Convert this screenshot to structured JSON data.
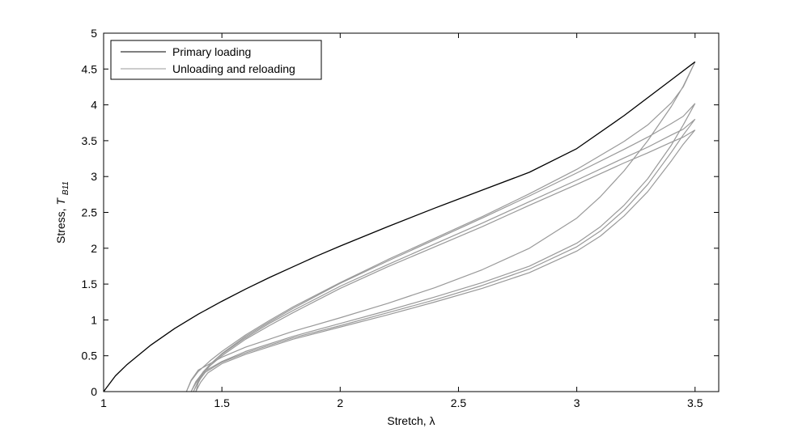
{
  "chart_data": {
    "type": "line",
    "title": "",
    "xlabel": "Stretch, λ",
    "ylabel_prefix": "Stress, ",
    "ylabel_symbol": "T",
    "ylabel_subscript": "B11",
    "xlim": [
      1,
      3.6
    ],
    "ylim": [
      0,
      5
    ],
    "xticks": [
      1,
      1.5,
      2,
      2.5,
      3,
      3.5
    ],
    "xtick_labels": [
      "1",
      "1.5",
      "2",
      "2.5",
      "3",
      "3.5"
    ],
    "yticks": [
      0,
      0.5,
      1,
      1.5,
      2,
      2.5,
      3,
      3.5,
      4,
      4.5,
      5
    ],
    "ytick_labels": [
      "0",
      "0.5",
      "1",
      "1.5",
      "2",
      "2.5",
      "3",
      "3.5",
      "4",
      "4.5",
      "5"
    ],
    "grid": false,
    "legend_position": "top-left",
    "colors": {
      "primary": "#000000",
      "cycles": "#999999"
    },
    "series": [
      {
        "name": "Primary loading",
        "color": "#000000",
        "x": [
          1,
          1.05,
          1.1,
          1.2,
          1.3,
          1.4,
          1.5,
          1.6,
          1.7,
          1.8,
          1.9,
          2.0,
          2.2,
          2.4,
          2.6,
          2.8,
          3.0,
          3.2,
          3.4,
          3.5
        ],
        "y": [
          0,
          0.22,
          0.38,
          0.65,
          0.88,
          1.08,
          1.26,
          1.43,
          1.59,
          1.74,
          1.89,
          2.03,
          2.3,
          2.56,
          2.81,
          3.06,
          3.39,
          3.85,
          4.35,
          4.6
        ]
      },
      {
        "name": "Unloading and reloading",
        "color": "#999999",
        "x": [
          3.5,
          3.45,
          3.4,
          3.3,
          3.2,
          3.0,
          2.8,
          2.6,
          2.4,
          2.2,
          2.0,
          1.8,
          1.7,
          1.6,
          1.5,
          1.45,
          1.4,
          1.37,
          1.35,
          1.37,
          1.4,
          1.5,
          1.6,
          1.8,
          2.0,
          2.2,
          2.4,
          2.6,
          2.8,
          3.0,
          3.1,
          3.2,
          3.3,
          3.4,
          3.45,
          3.5
        ],
        "y": [
          4.6,
          4.25,
          4.03,
          3.72,
          3.49,
          3.1,
          2.76,
          2.44,
          2.14,
          1.84,
          1.52,
          1.18,
          0.99,
          0.79,
          0.56,
          0.43,
          0.28,
          0.15,
          0.0,
          0.16,
          0.3,
          0.48,
          0.62,
          0.84,
          1.03,
          1.23,
          1.45,
          1.7,
          2.0,
          2.42,
          2.72,
          3.08,
          3.5,
          3.98,
          4.26,
          4.6
        ]
      },
      {
        "name": "",
        "color": "#999999",
        "x": [
          3.5,
          3.45,
          3.4,
          3.3,
          3.2,
          3.0,
          2.8,
          2.6,
          2.4,
          2.2,
          2.0,
          1.8,
          1.7,
          1.6,
          1.5,
          1.45,
          1.42,
          1.39,
          1.37,
          1.39,
          1.42,
          1.5,
          1.6,
          1.8,
          2.0,
          2.2,
          2.4,
          2.6,
          2.8,
          3.0,
          3.1,
          3.2,
          3.3,
          3.4,
          3.45,
          3.5
        ],
        "y": [
          4.02,
          3.84,
          3.74,
          3.55,
          3.38,
          3.05,
          2.73,
          2.42,
          2.12,
          1.82,
          1.51,
          1.16,
          0.97,
          0.77,
          0.53,
          0.38,
          0.27,
          0.12,
          0.0,
          0.14,
          0.27,
          0.42,
          0.56,
          0.77,
          0.95,
          1.13,
          1.32,
          1.52,
          1.75,
          2.07,
          2.3,
          2.6,
          2.97,
          3.44,
          3.72,
          4.02
        ]
      },
      {
        "name": "",
        "color": "#999999",
        "x": [
          3.5,
          3.45,
          3.4,
          3.3,
          3.2,
          3.0,
          2.8,
          2.6,
          2.4,
          2.2,
          2.0,
          1.8,
          1.7,
          1.6,
          1.5,
          1.45,
          1.42,
          1.4,
          1.38,
          1.4,
          1.43,
          1.5,
          1.6,
          1.8,
          2.0,
          2.2,
          2.4,
          2.6,
          2.8,
          3.0,
          3.1,
          3.2,
          3.3,
          3.4,
          3.45,
          3.5
        ],
        "y": [
          3.8,
          3.66,
          3.58,
          3.41,
          3.26,
          2.95,
          2.65,
          2.35,
          2.06,
          1.77,
          1.47,
          1.13,
          0.95,
          0.75,
          0.52,
          0.38,
          0.27,
          0.15,
          0.0,
          0.14,
          0.27,
          0.41,
          0.54,
          0.75,
          0.92,
          1.1,
          1.28,
          1.48,
          1.71,
          2.02,
          2.24,
          2.53,
          2.89,
          3.34,
          3.58,
          3.8
        ]
      },
      {
        "name": "",
        "color": "#999999",
        "x": [
          3.5,
          3.45,
          3.4,
          3.3,
          3.2,
          3.0,
          2.8,
          2.6,
          2.4,
          2.2,
          2.0,
          1.8,
          1.7,
          1.6,
          1.5,
          1.45,
          1.42,
          1.4,
          1.39,
          1.41,
          1.44,
          1.5,
          1.6,
          1.8,
          2.0,
          2.2,
          2.4,
          2.6,
          2.8,
          3.0,
          3.1,
          3.2,
          3.3,
          3.4,
          3.45,
          3.5
        ],
        "y": [
          3.65,
          3.55,
          3.48,
          3.33,
          3.19,
          2.89,
          2.6,
          2.3,
          2.02,
          1.74,
          1.44,
          1.1,
          0.92,
          0.73,
          0.5,
          0.36,
          0.25,
          0.12,
          0.0,
          0.13,
          0.26,
          0.39,
          0.52,
          0.73,
          0.9,
          1.07,
          1.25,
          1.44,
          1.66,
          1.96,
          2.17,
          2.45,
          2.79,
          3.22,
          3.45,
          3.65
        ]
      }
    ]
  }
}
